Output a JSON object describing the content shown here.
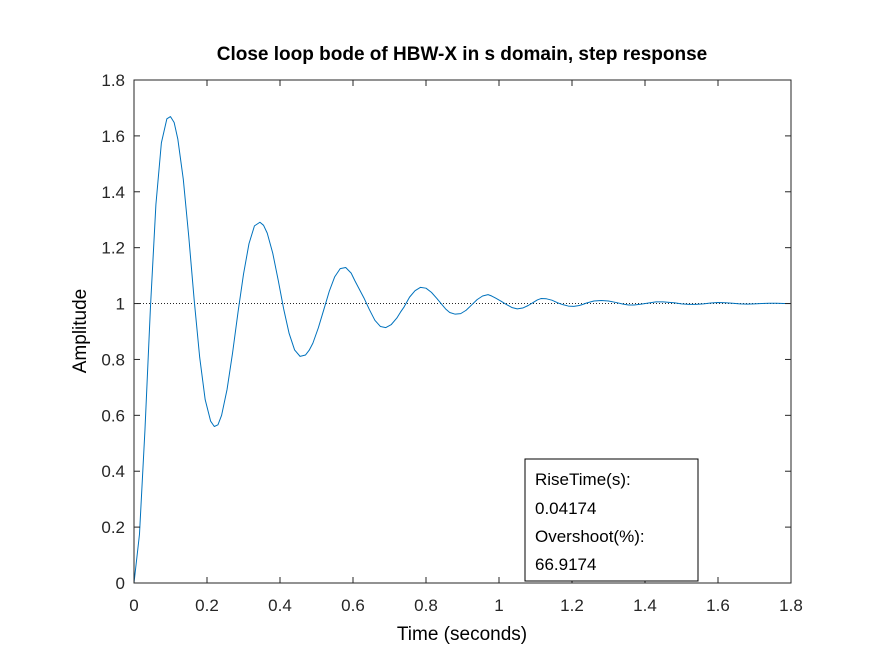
{
  "chart_data": {
    "type": "line",
    "title": "Close loop bode of HBW-X in s domain, step response",
    "xlabel": "Time (seconds)",
    "ylabel": "Amplitude",
    "xlim": [
      0,
      1.8
    ],
    "ylim": [
      0,
      1.8
    ],
    "xticks": [
      0,
      0.2,
      0.4,
      0.6,
      0.8,
      1,
      1.2,
      1.4,
      1.6,
      1.8
    ],
    "yticks": [
      0,
      0.2,
      0.4,
      0.6,
      0.8,
      1,
      1.2,
      1.4,
      1.6,
      1.8
    ],
    "xtick_labels": [
      "0",
      "0.2",
      "0.4",
      "0.6",
      "0.8",
      "1",
      "1.2",
      "1.4",
      "1.6",
      "1.8"
    ],
    "ytick_labels": [
      "0",
      "0.2",
      "0.4",
      "0.6",
      "0.8",
      "1",
      "1.2",
      "1.4",
      "1.6",
      "1.8"
    ],
    "reference_line": {
      "y": 1,
      "style": "dotted"
    },
    "grid": false,
    "series": [
      {
        "color": "#0072BD",
        "x": [
          0.0,
          0.015,
          0.03,
          0.045,
          0.06,
          0.075,
          0.09,
          0.1,
          0.11,
          0.12,
          0.135,
          0.15,
          0.165,
          0.18,
          0.195,
          0.21,
          0.22,
          0.23,
          0.24,
          0.255,
          0.27,
          0.285,
          0.3,
          0.315,
          0.33,
          0.345,
          0.355,
          0.365,
          0.38,
          0.395,
          0.41,
          0.425,
          0.44,
          0.455,
          0.47,
          0.48,
          0.49,
          0.505,
          0.52,
          0.535,
          0.55,
          0.565,
          0.58,
          0.595,
          0.605,
          0.615,
          0.63,
          0.645,
          0.66,
          0.675,
          0.69,
          0.705,
          0.72,
          0.73,
          0.74,
          0.755,
          0.77,
          0.785,
          0.8,
          0.815,
          0.83,
          0.845,
          0.855,
          0.865,
          0.88,
          0.895,
          0.91,
          0.925,
          0.94,
          0.955,
          0.97,
          0.98,
          0.99,
          1.005,
          1.02,
          1.035,
          1.05,
          1.065,
          1.08,
          1.095,
          1.105,
          1.115,
          1.13,
          1.145,
          1.16,
          1.175,
          1.19,
          1.205,
          1.22,
          1.23,
          1.24,
          1.26,
          1.28,
          1.3,
          1.32,
          1.34,
          1.355,
          1.37,
          1.39,
          1.41,
          1.43,
          1.45,
          1.47,
          1.48,
          1.5,
          1.52,
          1.54,
          1.56,
          1.58,
          1.6,
          1.62,
          1.64,
          1.66,
          1.68,
          1.7,
          1.72,
          1.74,
          1.76,
          1.78,
          1.8
        ],
        "y": [
          0.0,
          0.174,
          0.547,
          0.985,
          1.354,
          1.575,
          1.661,
          1.669,
          1.648,
          1.589,
          1.445,
          1.24,
          1.011,
          0.807,
          0.656,
          0.579,
          0.56,
          0.566,
          0.6,
          0.693,
          0.823,
          0.969,
          1.105,
          1.214,
          1.278,
          1.291,
          1.28,
          1.252,
          1.181,
          1.084,
          0.981,
          0.893,
          0.834,
          0.811,
          0.816,
          0.833,
          0.858,
          0.913,
          0.978,
          1.044,
          1.096,
          1.125,
          1.129,
          1.109,
          1.082,
          1.057,
          1.02,
          0.978,
          0.94,
          0.918,
          0.914,
          0.925,
          0.948,
          0.969,
          0.988,
          1.023,
          1.046,
          1.058,
          1.055,
          1.04,
          1.018,
          0.994,
          0.979,
          0.968,
          0.962,
          0.964,
          0.976,
          0.995,
          1.014,
          1.027,
          1.032,
          1.027,
          1.02,
          1.009,
          0.997,
          0.986,
          0.981,
          0.984,
          0.993,
          1.005,
          1.013,
          1.018,
          1.017,
          1.012,
          1.003,
          0.996,
          0.991,
          0.99,
          0.993,
          0.997,
          1.002,
          1.009,
          1.011,
          1.009,
          1.004,
          0.998,
          0.995,
          0.995,
          0.998,
          1.002,
          1.006,
          1.006,
          1.004,
          1.003,
          0.999,
          0.997,
          0.997,
          0.999,
          1.002,
          1.004,
          1.003,
          1.001,
          0.999,
          0.998,
          0.999,
          1.0,
          1.001,
          1.001,
          1.0,
          1.0
        ]
      }
    ],
    "annotation": {
      "lines": [
        "RiseTime(s):",
        "0.04174",
        "Overshoot(%):",
        "66.9174"
      ]
    }
  },
  "colors": {
    "line": "#0072BD",
    "axes": "#262626",
    "reference": "#262626",
    "background": "#ffffff"
  }
}
